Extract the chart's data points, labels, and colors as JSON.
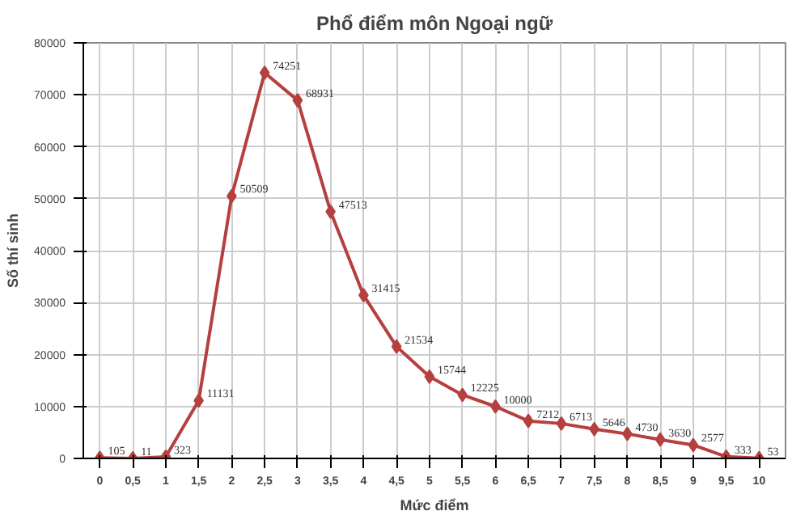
{
  "chart_data": {
    "type": "line",
    "title": "Phổ điểm môn Ngoại ngữ",
    "xlabel": "Mức điểm",
    "ylabel": "Số thí sinh",
    "categories": [
      "0",
      "0,5",
      "1",
      "1,5",
      "2",
      "2,5",
      "3",
      "3,5",
      "4",
      "4,5",
      "5",
      "5,5",
      "6",
      "6,5",
      "7",
      "7,5",
      "8",
      "8,5",
      "9",
      "9,5",
      "10"
    ],
    "series": [
      {
        "color": "#b5403f",
        "values": [
          105,
          11,
          323,
          11131,
          50509,
          74251,
          68931,
          47513,
          31415,
          21534,
          15744,
          12225,
          10000,
          7212,
          6713,
          5646,
          4730,
          3630,
          2577,
          333,
          53
        ]
      }
    ],
    "ylim": [
      0,
      80000
    ],
    "yticks": [
      0,
      10000,
      20000,
      30000,
      40000,
      50000,
      60000,
      70000,
      80000
    ],
    "grid": true,
    "marker": "diamond",
    "line_style": "solid",
    "data_labels": true
  }
}
